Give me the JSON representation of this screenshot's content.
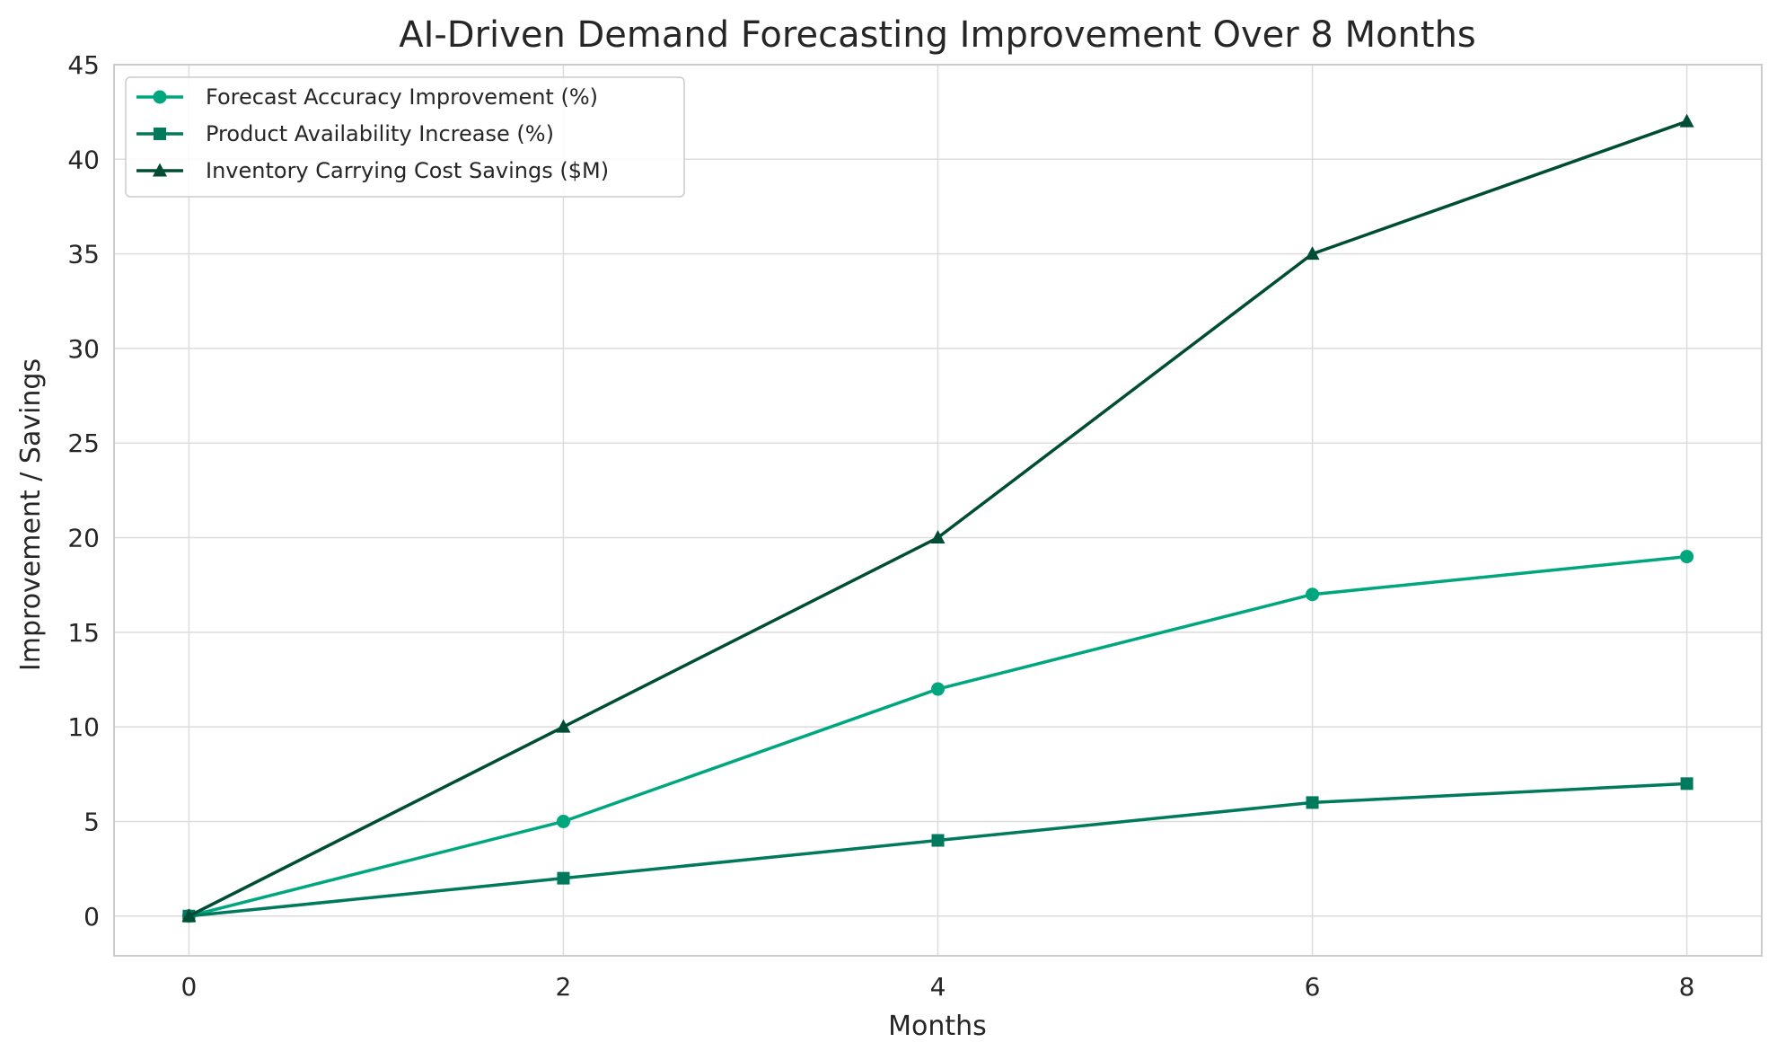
{
  "chart_data": {
    "type": "line",
    "title": "AI-Driven Demand Forecasting Improvement Over 8 Months",
    "xlabel": "Months",
    "ylabel": "Improvement / Savings",
    "x": [
      0,
      2,
      4,
      6,
      8
    ],
    "xticks": [
      "0",
      "2",
      "4",
      "6",
      "8"
    ],
    "yticks": [
      "0",
      "5",
      "10",
      "15",
      "20",
      "25",
      "30",
      "35",
      "40",
      "45"
    ],
    "xlim": [
      -0.4,
      8.4
    ],
    "ylim": [
      -2.1,
      45
    ],
    "grid": true,
    "legend_position": "top-left",
    "series": [
      {
        "name": "Forecast Accuracy Improvement (%)",
        "values": [
          0,
          5,
          12,
          17,
          19
        ],
        "color": "#00a67e",
        "marker": "circle"
      },
      {
        "name": "Product Availability Increase (%)",
        "values": [
          0,
          2,
          4,
          6,
          7
        ],
        "color": "#00795c",
        "marker": "square"
      },
      {
        "name": "Inventory Carrying Cost Savings ($M)",
        "values": [
          0,
          10,
          20,
          35,
          42
        ],
        "color": "#004d35",
        "marker": "triangle"
      }
    ]
  }
}
